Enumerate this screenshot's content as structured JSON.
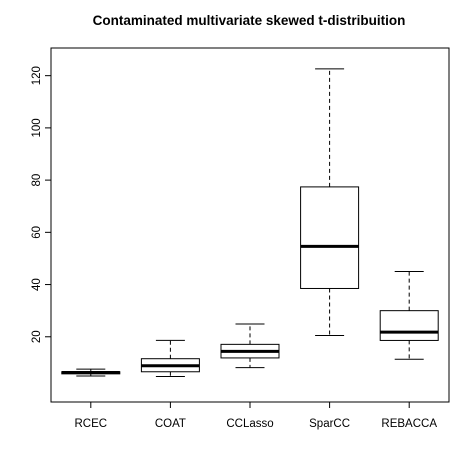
{
  "chart_data": {
    "type": "boxplot",
    "title": "Contaminated multivariate skewed t-distribuition",
    "xlabel": "",
    "ylabel": "",
    "categories": [
      "RCEC",
      "COAT",
      "CCLasso",
      "SparCC",
      "REBACCA"
    ],
    "ylim": [
      0,
      126
    ],
    "yticks": [
      20,
      40,
      60,
      80,
      100,
      120
    ],
    "boxes": [
      {
        "category": "RCEC",
        "whisker_low": 5.0,
        "q1": 5.8,
        "median": 6.3,
        "q3": 6.6,
        "whisker_high": 7.6
      },
      {
        "category": "COAT",
        "whisker_low": 4.8,
        "q1": 6.6,
        "median": 8.9,
        "q3": 11.6,
        "whisker_high": 18.6
      },
      {
        "category": "CCLasso",
        "whisker_low": 8.2,
        "q1": 11.9,
        "median": 14.4,
        "q3": 17.1,
        "whisker_high": 24.9
      },
      {
        "category": "SparCC",
        "whisker_low": 20.5,
        "q1": 38.5,
        "median": 54.6,
        "q3": 77.4,
        "whisker_high": 122.6
      },
      {
        "category": "REBACCA",
        "whisker_low": 11.4,
        "q1": 18.6,
        "median": 21.8,
        "q3": 30.0,
        "whisker_high": 45.0
      }
    ],
    "grid": false,
    "legend": "none",
    "colors": {
      "stroke": "#000000",
      "fill": "#ffffff"
    }
  }
}
